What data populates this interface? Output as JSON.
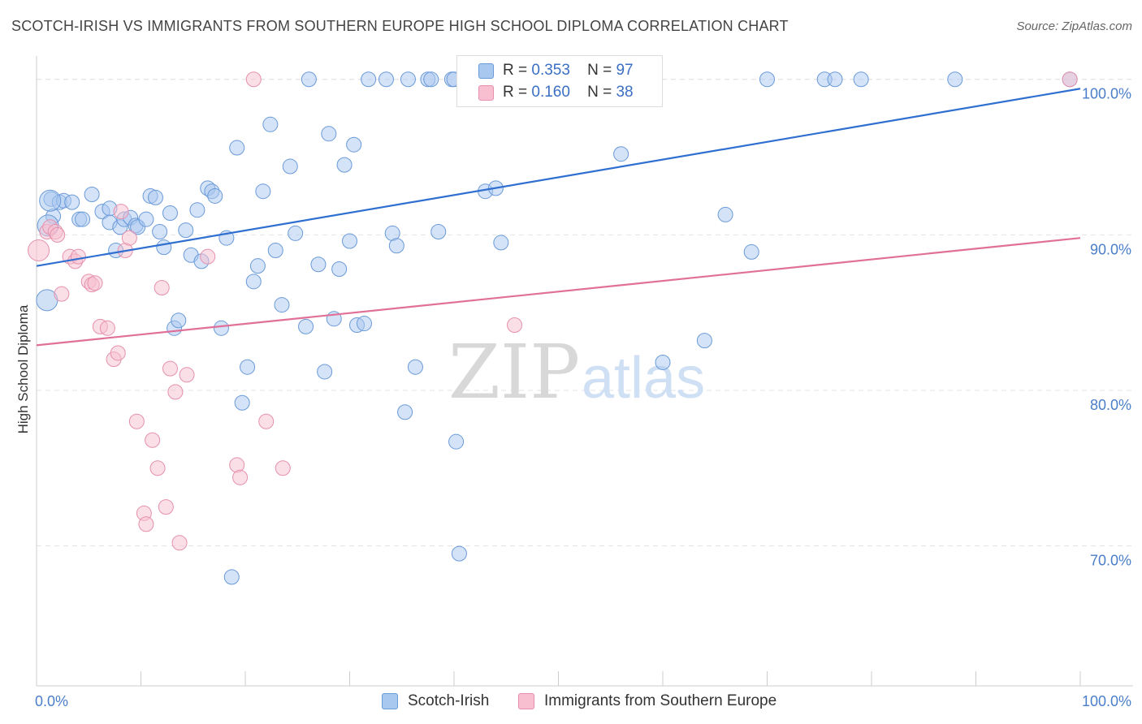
{
  "header": {
    "title": "SCOTCH-IRISH VS IMMIGRANTS FROM SOUTHERN EUROPE HIGH SCHOOL DIPLOMA CORRELATION CHART",
    "source": "Source: ZipAtlas.com"
  },
  "watermark": {
    "part1": "ZIP",
    "part2": "atlas"
  },
  "legend": {
    "r_label": "R =",
    "n_label": "N =",
    "series": [
      {
        "name": "Scotch-Irish",
        "r": "0.353",
        "n": "97"
      },
      {
        "name": "Immigrants from Southern Europe",
        "r": "0.160",
        "n": "38"
      }
    ]
  },
  "chart_data": {
    "type": "scatter",
    "title": "SCOTCH-IRISH VS IMMIGRANTS FROM SOUTHERN EUROPE HIGH SCHOOL DIPLOMA CORRELATION CHART",
    "ylabel": "High School Diploma",
    "xlabel": "",
    "xlim": [
      0,
      100
    ],
    "ylim": [
      61,
      101.5
    ],
    "x_tick_labels": [
      "0.0%",
      "100.0%"
    ],
    "y_ticks": [
      70,
      80,
      90,
      100
    ],
    "y_tick_labels": [
      "70.0%",
      "80.0%",
      "90.0%",
      "100.0%"
    ],
    "grid": true,
    "legend_position": "top-center",
    "colors": {
      "Scotch-Irish": {
        "fill": "#a9c8ef",
        "stroke": "#6a9ad8",
        "line": "#2f6fd0"
      },
      "Immigrants from Southern Europe": {
        "fill": "#f7bfd0",
        "stroke": "#e590ad",
        "line": "#e07098"
      }
    },
    "series": [
      {
        "name": "Scotch-Irish",
        "trend": {
          "x": [
            0,
            100
          ],
          "y": [
            88.0,
            99.4
          ]
        },
        "points": [
          [
            1.4,
            92.3
          ],
          [
            1.6,
            91.2
          ],
          [
            2.2,
            92.1
          ],
          [
            2.6,
            92.2
          ],
          [
            3.4,
            92.1
          ],
          [
            4.1,
            91.0
          ],
          [
            4.4,
            91.0
          ],
          [
            5.3,
            92.6
          ],
          [
            6.3,
            91.5
          ],
          [
            7.0,
            91.7
          ],
          [
            7.0,
            90.8
          ],
          [
            7.6,
            89.0
          ],
          [
            8.0,
            90.5
          ],
          [
            8.4,
            91.0
          ],
          [
            9.0,
            91.1
          ],
          [
            9.5,
            90.6
          ],
          [
            9.7,
            90.5
          ],
          [
            10.5,
            91.0
          ],
          [
            10.9,
            92.5
          ],
          [
            11.4,
            92.4
          ],
          [
            11.8,
            90.2
          ],
          [
            12.2,
            89.2
          ],
          [
            12.8,
            91.4
          ],
          [
            13.2,
            84.0
          ],
          [
            13.6,
            84.5
          ],
          [
            14.3,
            90.3
          ],
          [
            14.8,
            88.7
          ],
          [
            15.4,
            91.6
          ],
          [
            15.8,
            88.3
          ],
          [
            16.4,
            93.0
          ],
          [
            16.8,
            92.8
          ],
          [
            17.1,
            92.5
          ],
          [
            17.7,
            84.0
          ],
          [
            18.2,
            89.8
          ],
          [
            18.7,
            68.0
          ],
          [
            19.2,
            95.6
          ],
          [
            19.7,
            79.2
          ],
          [
            20.2,
            81.5
          ],
          [
            20.8,
            87.0
          ],
          [
            21.2,
            88.0
          ],
          [
            21.7,
            92.8
          ],
          [
            22.4,
            97.1
          ],
          [
            22.9,
            89.0
          ],
          [
            23.5,
            85.5
          ],
          [
            24.3,
            94.4
          ],
          [
            24.8,
            90.1
          ],
          [
            25.8,
            84.1
          ],
          [
            26.1,
            100.0
          ],
          [
            27.0,
            88.1
          ],
          [
            27.6,
            81.2
          ],
          [
            28.0,
            96.5
          ],
          [
            28.5,
            84.6
          ],
          [
            29.0,
            87.8
          ],
          [
            29.5,
            94.5
          ],
          [
            30.0,
            89.6
          ],
          [
            30.4,
            95.8
          ],
          [
            30.7,
            84.2
          ],
          [
            31.4,
            84.3
          ],
          [
            31.8,
            100.0
          ],
          [
            33.5,
            100.0
          ],
          [
            34.1,
            90.1
          ],
          [
            34.5,
            89.3
          ],
          [
            35.3,
            78.6
          ],
          [
            35.6,
            100.0
          ],
          [
            36.3,
            81.5
          ],
          [
            37.5,
            100.0
          ],
          [
            37.8,
            100.0
          ],
          [
            38.5,
            90.2
          ],
          [
            39.8,
            100.0
          ],
          [
            40.0,
            100.0
          ],
          [
            40.2,
            76.7
          ],
          [
            41.5,
            100.0
          ],
          [
            43.0,
            92.8
          ],
          [
            43.8,
            100.0
          ],
          [
            44.0,
            93.0
          ],
          [
            44.5,
            89.5
          ],
          [
            46.0,
            100.0
          ],
          [
            48.2,
            100.0
          ],
          [
            50.5,
            100.0
          ],
          [
            52.0,
            100.0
          ],
          [
            53.0,
            100.0
          ],
          [
            55.5,
            100.0
          ],
          [
            56.0,
            95.2
          ],
          [
            60.0,
            81.8
          ],
          [
            64.0,
            83.2
          ],
          [
            66.0,
            91.3
          ],
          [
            70.0,
            100.0
          ],
          [
            75.5,
            100.0
          ],
          [
            76.5,
            100.0
          ],
          [
            79.0,
            100.0
          ],
          [
            88.0,
            100.0
          ],
          [
            99.0,
            100.0
          ],
          [
            68.5,
            88.9
          ],
          [
            40.5,
            69.5
          ]
        ],
        "big_points": [
          [
            1.0,
            85.8
          ],
          [
            1.1,
            90.6
          ],
          [
            1.3,
            92.2
          ]
        ]
      },
      {
        "name": "Immigrants from Southern Europe",
        "trend": {
          "x": [
            0,
            100
          ],
          "y": [
            82.9,
            89.8
          ]
        },
        "points": [
          [
            1.0,
            90.2
          ],
          [
            1.3,
            90.5
          ],
          [
            1.8,
            90.2
          ],
          [
            2.4,
            86.2
          ],
          [
            3.2,
            88.6
          ],
          [
            3.7,
            88.3
          ],
          [
            4.0,
            88.6
          ],
          [
            5.0,
            87.0
          ],
          [
            5.3,
            86.8
          ],
          [
            5.6,
            86.9
          ],
          [
            6.1,
            84.1
          ],
          [
            6.8,
            84.0
          ],
          [
            7.4,
            82.0
          ],
          [
            7.8,
            82.4
          ],
          [
            8.1,
            91.5
          ],
          [
            8.5,
            89.0
          ],
          [
            8.9,
            89.8
          ],
          [
            9.6,
            78.0
          ],
          [
            10.3,
            72.1
          ],
          [
            10.5,
            71.4
          ],
          [
            11.1,
            76.8
          ],
          [
            11.6,
            75.0
          ],
          [
            12.0,
            86.6
          ],
          [
            12.4,
            72.5
          ],
          [
            12.8,
            81.4
          ],
          [
            13.3,
            79.9
          ],
          [
            13.7,
            70.2
          ],
          [
            14.4,
            81.0
          ],
          [
            16.4,
            88.6
          ],
          [
            19.2,
            75.2
          ],
          [
            19.5,
            74.4
          ],
          [
            20.8,
            100.0
          ],
          [
            22.0,
            78.0
          ],
          [
            23.6,
            75.0
          ],
          [
            45.8,
            84.2
          ],
          [
            99.0,
            100.0
          ],
          [
            2.0,
            90.0
          ]
        ],
        "big_points": [
          [
            0.2,
            89.0
          ]
        ]
      }
    ]
  }
}
